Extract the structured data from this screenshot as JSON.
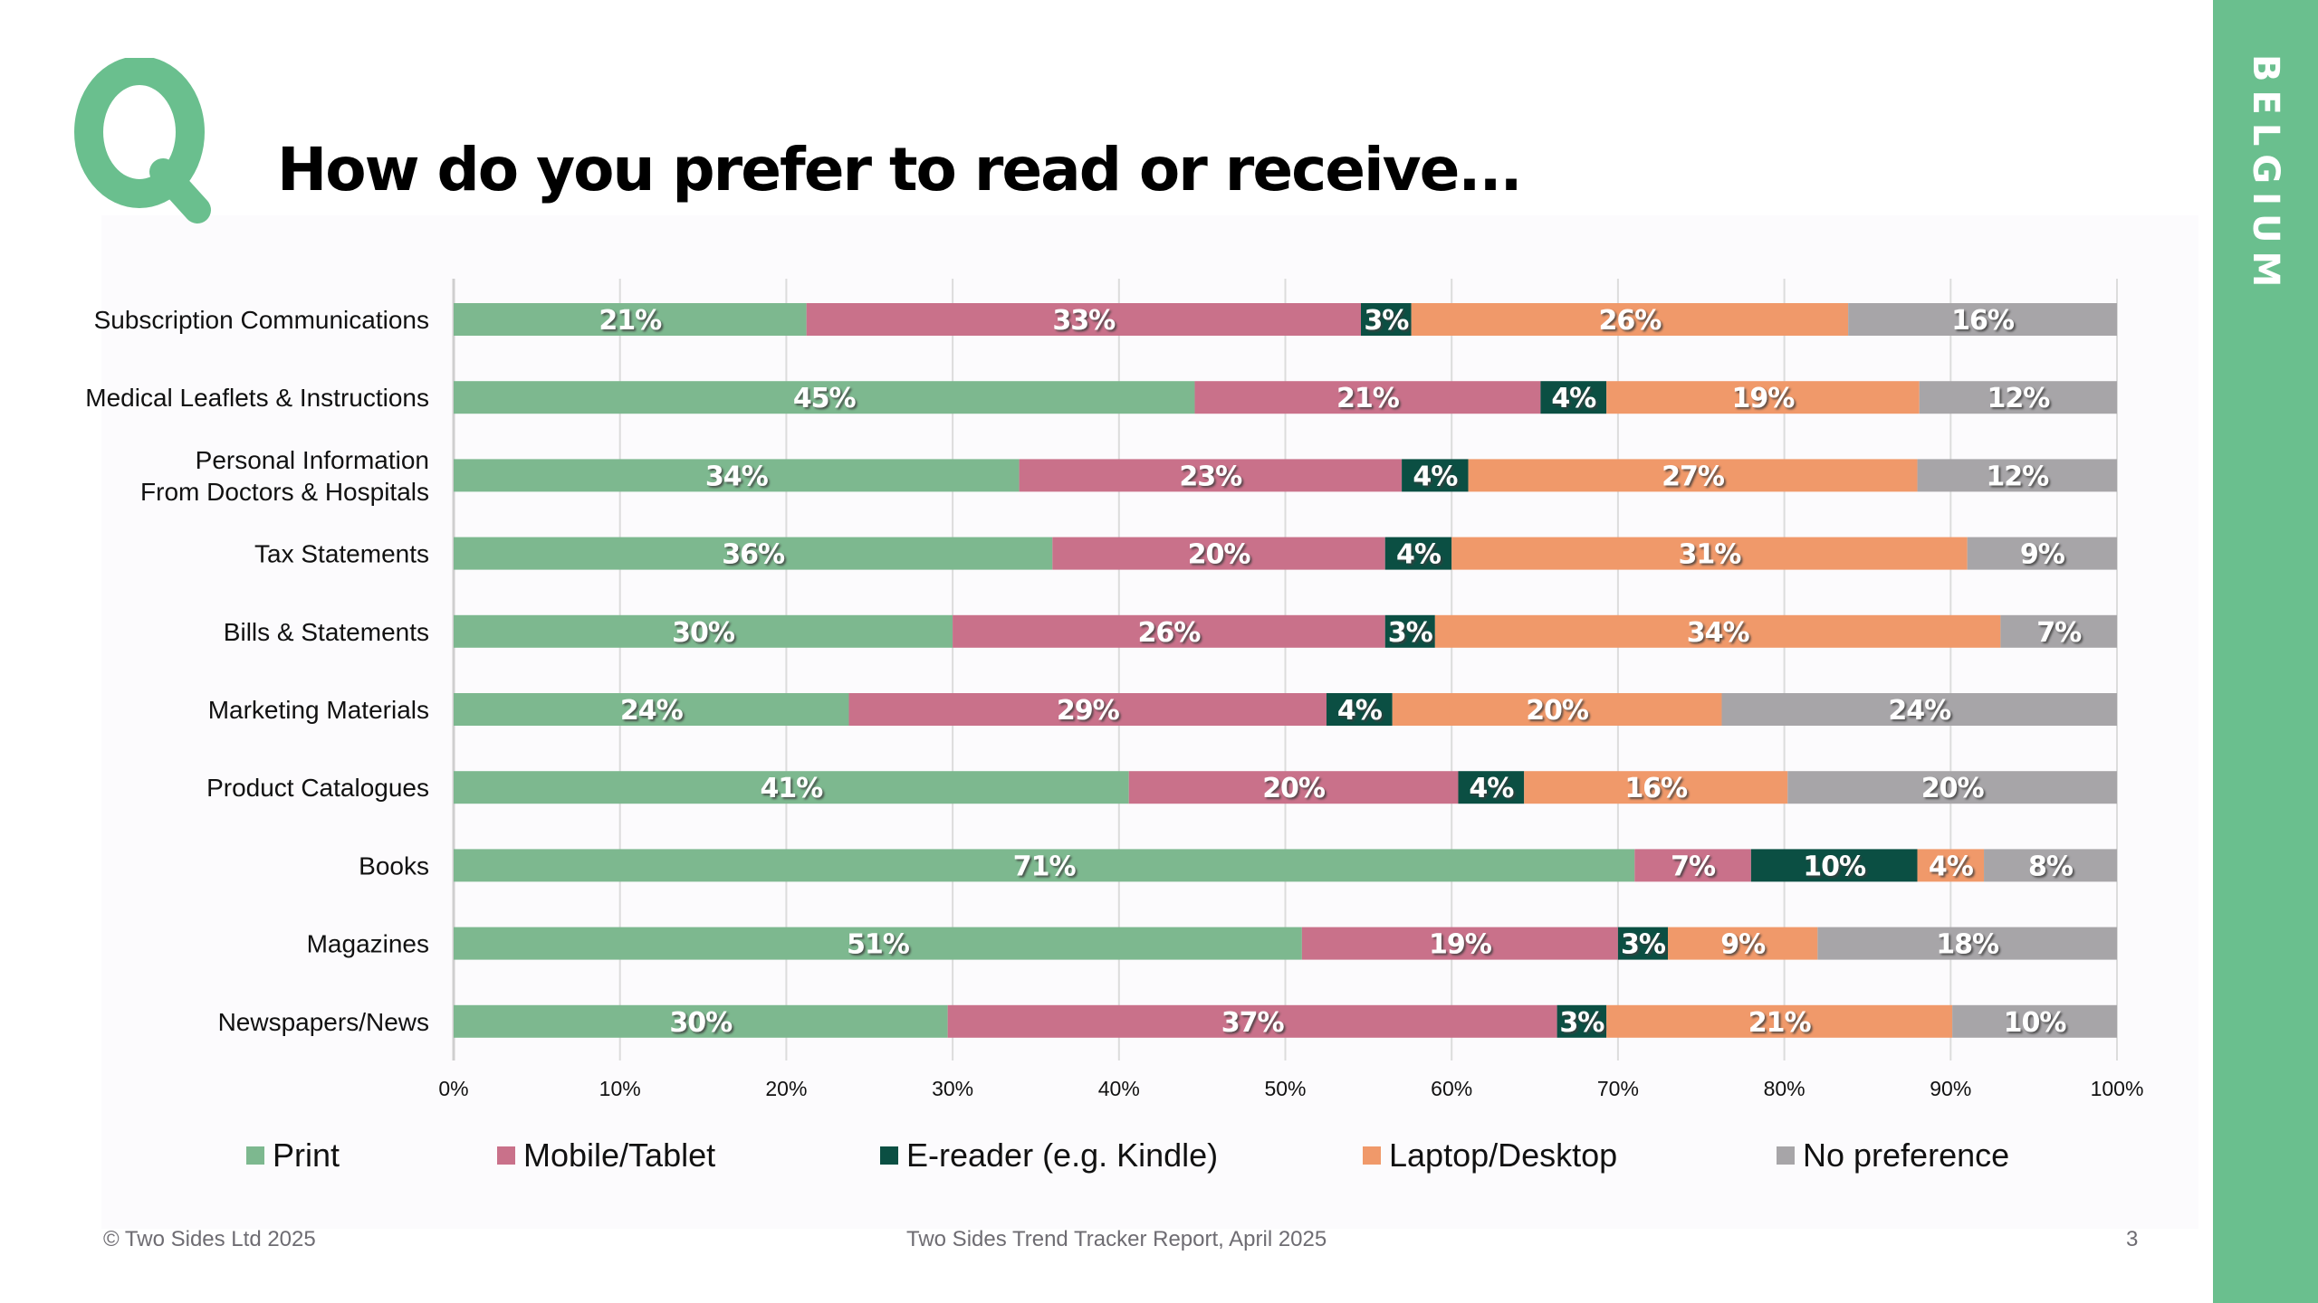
{
  "page": {
    "title": "How do you prefer to read or receive...",
    "q_letter": "Q",
    "country_tab": "BELGIUM",
    "colors": {
      "brand_green": "#6abf8e",
      "print": "#7db88f",
      "mobile": "#c9718a",
      "ereader": "#0b4f43",
      "laptop": "#f0996a",
      "nopref": "#a7a5a8"
    }
  },
  "footer": {
    "copyright": "© Two Sides Ltd 2025",
    "report": "Two Sides Trend Tracker Report, April 2025",
    "page_number": "3"
  },
  "chart_data": {
    "type": "bar",
    "orientation": "horizontal",
    "stacked": "100%",
    "title": "How do you prefer to read or receive...",
    "xlabel": "",
    "ylabel": "",
    "xlim": [
      0,
      100
    ],
    "x_ticks": [
      "0%",
      "10%",
      "20%",
      "30%",
      "40%",
      "50%",
      "60%",
      "70%",
      "80%",
      "90%",
      "100%"
    ],
    "grid": "vertical",
    "legend_position": "bottom",
    "categories": [
      "Subscription Communications",
      "Medical Leaflets & Instructions",
      "Personal Information\nFrom Doctors & Hospitals",
      "Tax Statements",
      "Bills & Statements",
      "Marketing Materials",
      "Product Catalogues",
      "Books",
      "Magazines",
      "Newspapers/News"
    ],
    "series": [
      {
        "name": "Print",
        "color": "#7db88f",
        "values": [
          21,
          45,
          34,
          36,
          30,
          24,
          41,
          71,
          51,
          30
        ]
      },
      {
        "name": "Mobile/Tablet",
        "color": "#c9718a",
        "values": [
          33,
          21,
          23,
          20,
          26,
          29,
          20,
          7,
          19,
          37
        ]
      },
      {
        "name": "E-reader (e.g. Kindle)",
        "color": "#0b4f43",
        "values": [
          3,
          4,
          4,
          4,
          3,
          4,
          4,
          10,
          3,
          3
        ]
      },
      {
        "name": "Laptop/Desktop",
        "color": "#f0996a",
        "values": [
          26,
          19,
          27,
          31,
          34,
          20,
          16,
          4,
          9,
          21
        ]
      },
      {
        "name": "No preference",
        "color": "#a7a5a8",
        "values": [
          16,
          12,
          12,
          9,
          7,
          24,
          20,
          8,
          18,
          10
        ]
      }
    ],
    "value_suffix": "%"
  }
}
